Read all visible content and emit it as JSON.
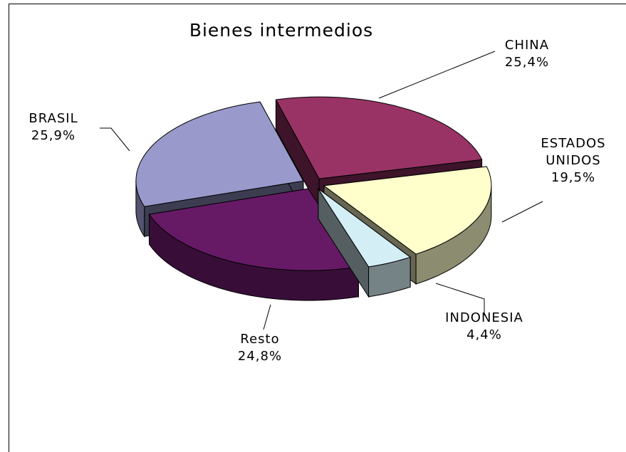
{
  "chart_data": {
    "type": "pie",
    "title": "Bienes intermedios",
    "categories": [
      "CHINA",
      "ESTADOS UNIDOS",
      "INDONESIA",
      "Resto",
      "BRASIL"
    ],
    "values": [
      25.4,
      19.5,
      4.4,
      24.8,
      25.9
    ],
    "value_labels": [
      "25,4%",
      "19,5%",
      "4,4%",
      "24,8%",
      "25,9%"
    ],
    "colors": [
      "#993366",
      "#ffffcc",
      "#d4eef6",
      "#661a66",
      "#9999cc"
    ]
  }
}
